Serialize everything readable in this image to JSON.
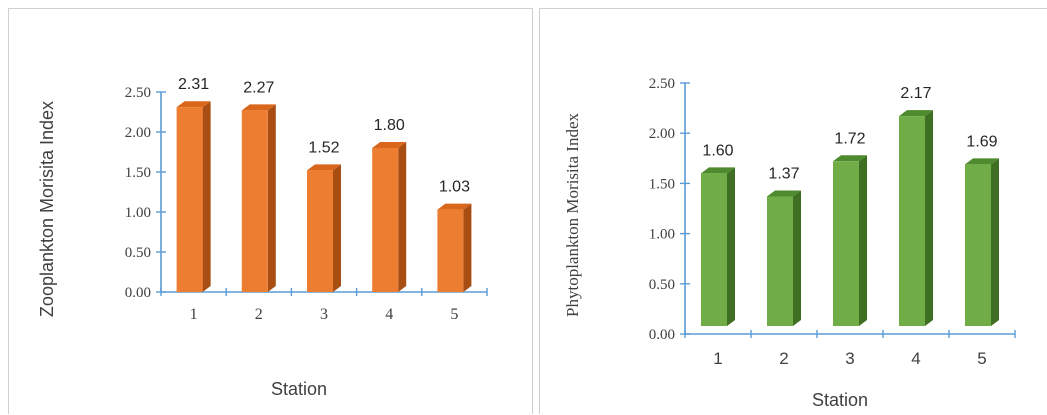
{
  "chart_data": [
    {
      "type": "bar",
      "categories": [
        "1",
        "2",
        "3",
        "4",
        "5"
      ],
      "values": [
        2.31,
        2.27,
        1.52,
        1.8,
        1.03
      ],
      "data_labels": [
        "2.31",
        "2.27",
        "1.52",
        "1.80",
        "1.03"
      ],
      "xlabel": "Station",
      "ylabel": "Zooplankton Morisita Index",
      "ylim": [
        0,
        2.5
      ],
      "yticks": [
        "0.00",
        "0.50",
        "1.00",
        "1.50",
        "2.00",
        "2.50"
      ],
      "yticks_values": [
        0,
        0.5,
        1.0,
        1.5,
        2.0,
        2.5
      ],
      "color": "#ED7D31",
      "color_top": "#D9661B",
      "color_side": "#A84E12",
      "grid": false,
      "style": "3d"
    },
    {
      "type": "bar",
      "categories": [
        "1",
        "2",
        "3",
        "4",
        "5"
      ],
      "values": [
        1.6,
        1.37,
        1.72,
        2.17,
        1.69
      ],
      "data_labels": [
        "1.60",
        "1.37",
        "1.72",
        "2.17",
        "1.69"
      ],
      "xlabel": "Station",
      "ylabel": "Phytoplankton Morisita Index",
      "ylim": [
        0,
        2.5
      ],
      "yticks": [
        "0.00",
        "0.50",
        "1.00",
        "1.50",
        "2.00",
        "2.50"
      ],
      "yticks_values": [
        0,
        0.5,
        1.0,
        1.5,
        2.0,
        2.5
      ],
      "color": "#70AD47",
      "color_top": "#4E8A2E",
      "color_side": "#3F6F23",
      "grid": false,
      "style": "3d"
    }
  ]
}
